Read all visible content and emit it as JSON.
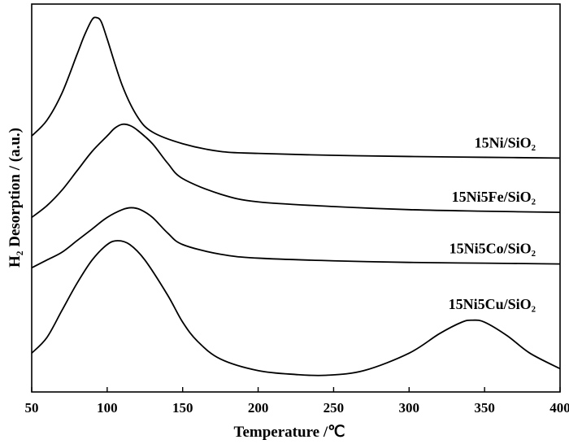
{
  "chart_data": {
    "type": "line",
    "title": "",
    "xlabel": "Temperature /℃",
    "ylabel": "H₂ Desorption / (a.u.)",
    "xlim": [
      50,
      400
    ],
    "xticks": [
      50,
      100,
      150,
      200,
      250,
      300,
      350,
      400
    ],
    "ylim": [
      0,
      1
    ],
    "yticks_shown": false,
    "grid": false,
    "legend": "labels beside curves",
    "series": [
      {
        "name": "15Ni/SiO₂",
        "x": [
          50,
          60,
          70,
          80,
          85,
          90,
          93,
          96,
          100,
          110,
          120,
          130,
          150,
          175,
          200,
          250,
          300,
          350,
          400
        ],
        "y": [
          0.66,
          0.7,
          0.77,
          0.87,
          0.92,
          0.96,
          0.965,
          0.955,
          0.91,
          0.79,
          0.71,
          0.67,
          0.64,
          0.62,
          0.615,
          0.61,
          0.607,
          0.605,
          0.603
        ]
      },
      {
        "name": "15Ni5Fe/SiO₂",
        "x": [
          50,
          60,
          70,
          80,
          90,
          100,
          105,
          110,
          115,
          120,
          130,
          140,
          150,
          175,
          200,
          250,
          300,
          350,
          400
        ],
        "y": [
          0.45,
          0.48,
          0.52,
          0.57,
          0.62,
          0.66,
          0.68,
          0.69,
          0.687,
          0.675,
          0.64,
          0.59,
          0.55,
          0.51,
          0.49,
          0.478,
          0.47,
          0.466,
          0.463
        ]
      },
      {
        "name": "15Ni5Co/SiO₂",
        "x": [
          50,
          60,
          70,
          80,
          90,
          100,
          110,
          116,
          122,
          130,
          140,
          150,
          175,
          200,
          250,
          300,
          350,
          400
        ],
        "y": [
          0.32,
          0.34,
          0.36,
          0.39,
          0.42,
          0.45,
          0.47,
          0.475,
          0.47,
          0.45,
          0.41,
          0.38,
          0.355,
          0.345,
          0.338,
          0.334,
          0.332,
          0.33
        ]
      },
      {
        "name": "15Ni5Cu/SiO₂",
        "x": [
          50,
          60,
          70,
          80,
          90,
          100,
          107,
          115,
          125,
          140,
          150,
          160,
          175,
          200,
          225,
          245,
          270,
          300,
          320,
          335,
          342,
          350,
          365,
          380,
          400
        ],
        "y": [
          0.1,
          0.14,
          0.21,
          0.28,
          0.34,
          0.38,
          0.39,
          0.38,
          0.34,
          0.25,
          0.18,
          0.13,
          0.085,
          0.055,
          0.045,
          0.043,
          0.055,
          0.1,
          0.15,
          0.18,
          0.185,
          0.18,
          0.145,
          0.1,
          0.06
        ]
      }
    ]
  }
}
